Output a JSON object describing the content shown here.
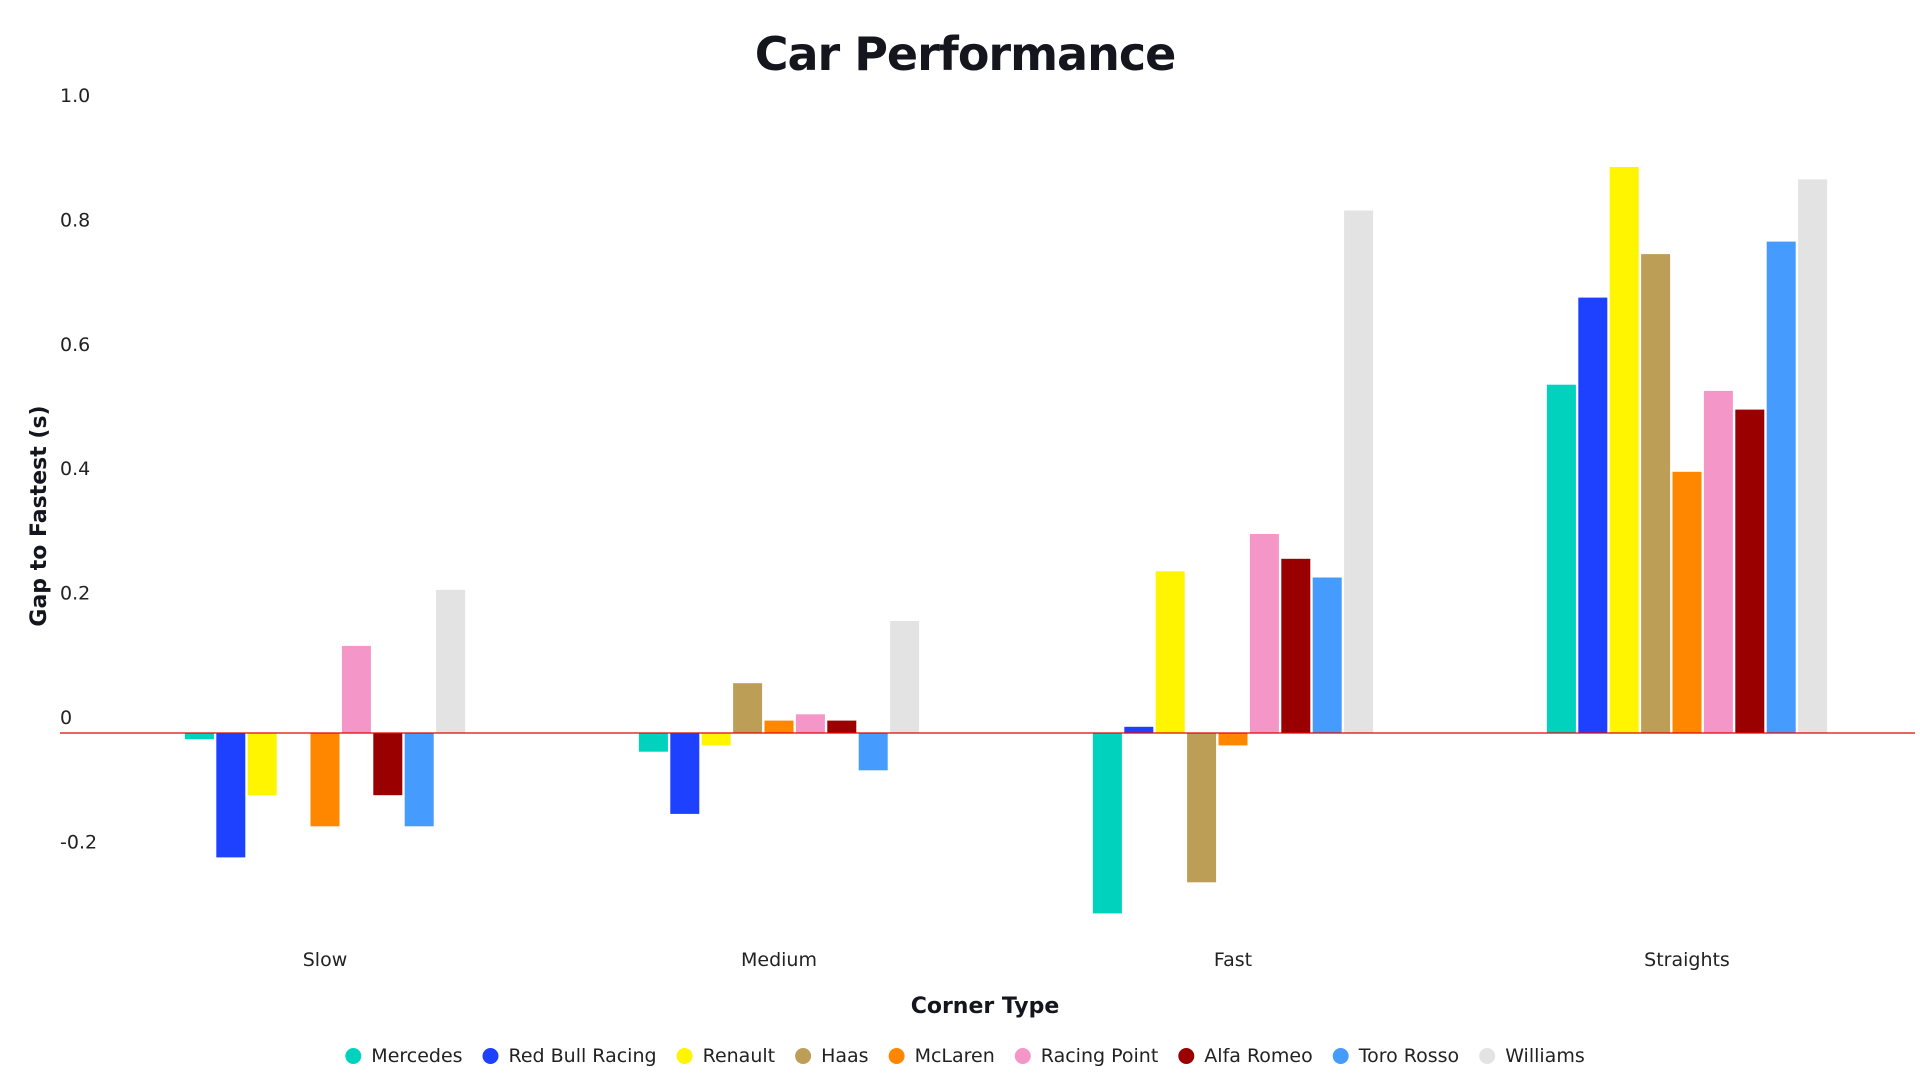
{
  "chart_data": {
    "type": "bar",
    "title": "Car Performance",
    "xlabel": "Corner Type",
    "ylabel": "Gap to Fastest (s)",
    "categories": [
      "Slow",
      "Medium",
      "Fast",
      "Straights"
    ],
    "ylim": [
      -0.3,
      1.0
    ],
    "yticks": [
      {
        "value": 1.0,
        "label": "1.0"
      },
      {
        "value": 0.8,
        "label": "0.8"
      },
      {
        "value": 0.6,
        "label": "0.6"
      },
      {
        "value": 0.4,
        "label": "0.4"
      },
      {
        "value": 0.2,
        "label": "0.2"
      },
      {
        "value": 0,
        "label": "0"
      },
      {
        "value": -0.2,
        "label": "-0.2"
      }
    ],
    "grid": false,
    "legend_position": "bottom",
    "zero_line_color": "#e10600",
    "series": [
      {
        "name": "Mercedes",
        "color": "#00d2be",
        "values": [
          -0.01,
          -0.03,
          -0.29,
          0.56
        ]
      },
      {
        "name": "Red Bull Racing",
        "color": "#1e41ff",
        "values": [
          -0.2,
          -0.13,
          0.01,
          0.7
        ]
      },
      {
        "name": "Renault",
        "color": "#fff500",
        "values": [
          -0.1,
          -0.02,
          0.26,
          0.91
        ]
      },
      {
        "name": "Haas",
        "color": "#bd9e57",
        "values": [
          0,
          0.08,
          -0.24,
          0.77
        ]
      },
      {
        "name": "McLaren",
        "color": "#ff8700",
        "values": [
          -0.15,
          0.02,
          -0.02,
          0.42
        ]
      },
      {
        "name": "Racing Point",
        "color": "#f596c8",
        "values": [
          0.14,
          0.03,
          0.32,
          0.55
        ]
      },
      {
        "name": "Alfa Romeo",
        "color": "#9b0000",
        "values": [
          -0.1,
          0.02,
          0.28,
          0.52
        ]
      },
      {
        "name": "Toro Rosso",
        "color": "#469bff",
        "values": [
          -0.15,
          -0.06,
          0.25,
          0.79
        ]
      },
      {
        "name": "Williams",
        "color": "#e3e3e3",
        "values": [
          0.23,
          0.18,
          0.84,
          0.89
        ]
      }
    ]
  }
}
